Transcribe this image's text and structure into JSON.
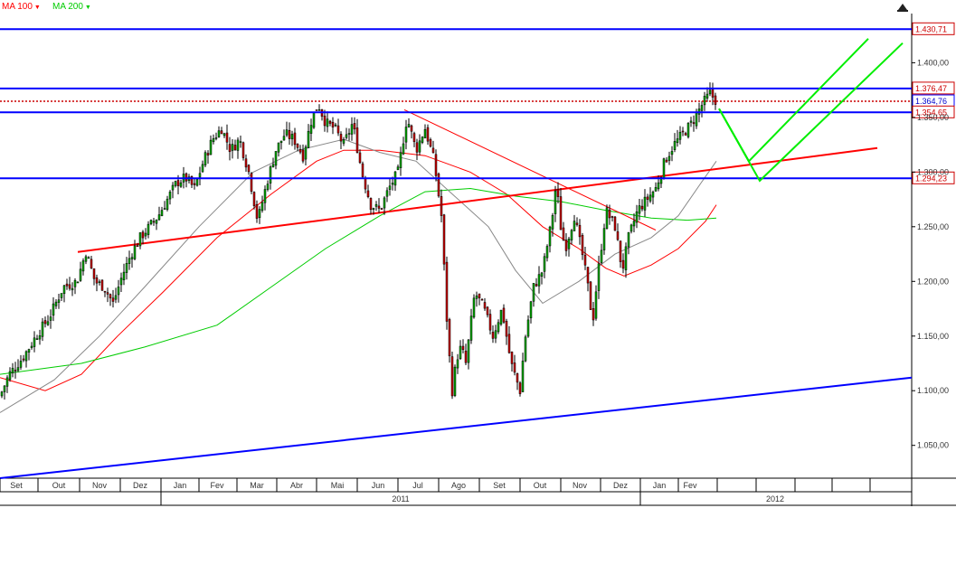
{
  "legend": {
    "ma100": {
      "label": "MA 100",
      "color": "#ff0000"
    },
    "ma200": {
      "label": "MA 200",
      "color": "#00cc00"
    }
  },
  "chart_data": {
    "type": "candlestick",
    "y_axis": {
      "ticks": [
        "1.400,00",
        "1.350,00",
        "1.300,00",
        "1.250,00",
        "1.200,00",
        "1.150,00",
        "1.100,00",
        "1.050,00"
      ],
      "tick_values": [
        1400,
        1350,
        1300,
        1250,
        1200,
        1150,
        1100,
        1050
      ],
      "ylim": [
        1020,
        1445
      ],
      "position": "right"
    },
    "x_axis": {
      "months": [
        "Set",
        "Out",
        "Nov",
        "Dez",
        "Jan",
        "Fev",
        "Mar",
        "Abr",
        "Mai",
        "Jun",
        "Jul",
        "Ago",
        "Set",
        "Out",
        "Nov",
        "Dez",
        "Jan",
        "Fev"
      ],
      "years": [
        "2011",
        "2012"
      ]
    },
    "price_levels": [
      {
        "label": "1.430,71",
        "value": 1430.71,
        "color": "#0000ff",
        "style": "solid"
      },
      {
        "label": "1.376,47",
        "value": 1376.47,
        "color": "#0000ff",
        "style": "solid"
      },
      {
        "label": "1.364,76",
        "value": 1364.76,
        "color": "#cc0000",
        "style": "dotted"
      },
      {
        "label": "1.354,65",
        "value": 1354.65,
        "color": "#0000ff",
        "style": "solid"
      },
      {
        "label": "1.294,23",
        "value": 1294.23,
        "color": "#0000ff",
        "style": "solid"
      }
    ],
    "price_path": [
      [
        0,
        1095
      ],
      [
        10,
        1115
      ],
      [
        25,
        1130
      ],
      [
        40,
        1150
      ],
      [
        55,
        1168
      ],
      [
        70,
        1195
      ],
      [
        85,
        1200
      ],
      [
        95,
        1227
      ],
      [
        105,
        1200
      ],
      [
        115,
        1195
      ],
      [
        125,
        1180
      ],
      [
        135,
        1205
      ],
      [
        145,
        1225
      ],
      [
        155,
        1240
      ],
      [
        165,
        1250
      ],
      [
        175,
        1260
      ],
      [
        185,
        1275
      ],
      [
        195,
        1290
      ],
      [
        205,
        1295
      ],
      [
        215,
        1285
      ],
      [
        225,
        1310
      ],
      [
        235,
        1330
      ],
      [
        245,
        1340
      ],
      [
        255,
        1320
      ],
      [
        265,
        1330
      ],
      [
        275,
        1300
      ],
      [
        285,
        1255
      ],
      [
        295,
        1290
      ],
      [
        305,
        1320
      ],
      [
        315,
        1335
      ],
      [
        325,
        1330
      ],
      [
        335,
        1315
      ],
      [
        345,
        1350
      ],
      [
        352,
        1362
      ],
      [
        360,
        1345
      ],
      [
        370,
        1340
      ],
      [
        380,
        1325
      ],
      [
        390,
        1345
      ],
      [
        400,
        1300
      ],
      [
        410,
        1270
      ],
      [
        420,
        1265
      ],
      [
        430,
        1285
      ],
      [
        440,
        1300
      ],
      [
        450,
        1350
      ],
      [
        460,
        1320
      ],
      [
        470,
        1340
      ],
      [
        480,
        1310
      ],
      [
        488,
        1260
      ],
      [
        495,
        1150
      ],
      [
        500,
        1100
      ],
      [
        505,
        1130
      ],
      [
        510,
        1140
      ],
      [
        515,
        1125
      ],
      [
        525,
        1190
      ],
      [
        535,
        1175
      ],
      [
        545,
        1150
      ],
      [
        555,
        1175
      ],
      [
        565,
        1125
      ],
      [
        575,
        1100
      ],
      [
        580,
        1145
      ],
      [
        590,
        1195
      ],
      [
        600,
        1210
      ],
      [
        610,
        1255
      ],
      [
        615,
        1290
      ],
      [
        620,
        1250
      ],
      [
        625,
        1230
      ],
      [
        635,
        1260
      ],
      [
        645,
        1220
      ],
      [
        652,
        1185
      ],
      [
        655,
        1160
      ],
      [
        660,
        1200
      ],
      [
        670,
        1265
      ],
      [
        680,
        1250
      ],
      [
        688,
        1210
      ],
      [
        695,
        1240
      ],
      [
        705,
        1265
      ],
      [
        715,
        1275
      ],
      [
        725,
        1285
      ],
      [
        735,
        1310
      ],
      [
        745,
        1325
      ],
      [
        755,
        1335
      ],
      [
        765,
        1345
      ],
      [
        775,
        1360
      ],
      [
        785,
        1372
      ],
      [
        792,
        1365
      ]
    ],
    "moving_averages": [
      {
        "name": "MA 100",
        "color": "#ff0000",
        "points": [
          [
            0,
            1112
          ],
          [
            50,
            1100
          ],
          [
            90,
            1115
          ],
          [
            130,
            1150
          ],
          [
            180,
            1190
          ],
          [
            240,
            1240
          ],
          [
            300,
            1280
          ],
          [
            350,
            1310
          ],
          [
            380,
            1320
          ],
          [
            420,
            1320
          ],
          [
            470,
            1315
          ],
          [
            520,
            1300
          ],
          [
            560,
            1280
          ],
          [
            600,
            1250
          ],
          [
            640,
            1230
          ],
          [
            670,
            1212
          ],
          [
            690,
            1205
          ],
          [
            720,
            1215
          ],
          [
            750,
            1230
          ],
          [
            780,
            1255
          ],
          [
            792,
            1270
          ]
        ]
      },
      {
        "name": "MA 200",
        "color": "#00cc00",
        "points": [
          [
            0,
            1115
          ],
          [
            90,
            1125
          ],
          [
            160,
            1140
          ],
          [
            240,
            1160
          ],
          [
            300,
            1195
          ],
          [
            360,
            1230
          ],
          [
            420,
            1260
          ],
          [
            470,
            1282
          ],
          [
            520,
            1285
          ],
          [
            570,
            1278
          ],
          [
            620,
            1273
          ],
          [
            670,
            1265
          ],
          [
            720,
            1258
          ],
          [
            760,
            1256
          ],
          [
            792,
            1258
          ]
        ]
      },
      {
        "name": "",
        "color": "#888888",
        "points": [
          [
            0,
            1080
          ],
          [
            60,
            1110
          ],
          [
            110,
            1150
          ],
          [
            160,
            1195
          ],
          [
            220,
            1250
          ],
          [
            280,
            1300
          ],
          [
            330,
            1320
          ],
          [
            380,
            1330
          ],
          [
            420,
            1318
          ],
          [
            460,
            1310
          ],
          [
            500,
            1280
          ],
          [
            540,
            1250
          ],
          [
            570,
            1210
          ],
          [
            600,
            1180
          ],
          [
            640,
            1200
          ],
          [
            680,
            1225
          ],
          [
            720,
            1240
          ],
          [
            750,
            1260
          ],
          [
            775,
            1290
          ],
          [
            792,
            1310
          ]
        ]
      }
    ],
    "trend_lines": [
      {
        "color": "#ff0000",
        "width": 2,
        "points": [
          [
            86,
            1227
          ],
          [
            970,
            1322
          ]
        ]
      },
      {
        "color": "#ff0000",
        "width": 1,
        "points": [
          [
            447,
            1357
          ],
          [
            725,
            1247
          ]
        ]
      },
      {
        "color": "#0000ff",
        "width": 2,
        "points": [
          [
            0,
            1020
          ],
          [
            1008,
            1112
          ]
        ]
      }
    ],
    "projection_lines": [
      {
        "color": "#00ee00",
        "points": [
          [
            795,
            1358
          ],
          [
            828,
            1310
          ],
          [
            960,
            1422
          ]
        ]
      },
      {
        "color": "#00ee00",
        "points": [
          [
            795,
            1358
          ],
          [
            840,
            1292
          ],
          [
            998,
            1418
          ]
        ]
      }
    ]
  }
}
